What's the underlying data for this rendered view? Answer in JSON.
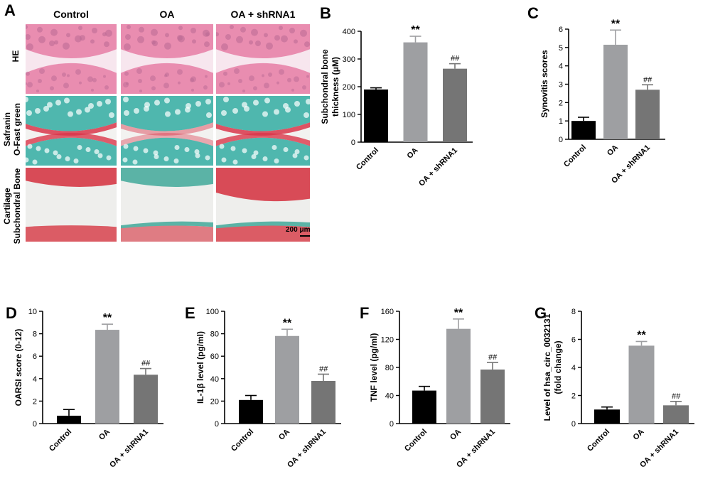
{
  "panel_a": {
    "letter": "A",
    "columns": [
      "Control",
      "OA",
      "OA + shRNA1"
    ],
    "rows": [
      {
        "label_lines": [
          "HE"
        ],
        "stain": "he"
      },
      {
        "label_lines": [
          "Safranin",
          "O-Fast green"
        ],
        "stain": "safranin"
      },
      {
        "label_lines": [
          "Cartilage",
          "Subchondral Bone"
        ],
        "stain": "cartilage"
      }
    ],
    "scale_bar": "200 μm",
    "colors": {
      "he_bg": "#f4c7d6",
      "he_tissue": "#e98db0",
      "saf_bg": "#f2f2f0",
      "saf_green": "#4fb7ae",
      "saf_red": "#d9364a",
      "cart_bg": "#eeeeec",
      "cart_red": "#d84b57",
      "cart_green": "#5bb3a6"
    }
  },
  "chart_data": [
    {
      "letter": "B",
      "type": "bar",
      "categories": [
        "Control",
        "OA",
        "OA + shRNA1"
      ],
      "values": [
        190,
        360,
        265
      ],
      "errors": [
        6,
        22,
        18
      ],
      "annotations": [
        "",
        "**",
        "##"
      ],
      "ylabel_lines": [
        "Subchondral bone",
        "thickness (μM)"
      ],
      "ylim": [
        0,
        400
      ],
      "yticks": [
        0,
        100,
        200,
        300,
        400
      ],
      "colors": [
        "#000000",
        "#9e9fa2",
        "#757575"
      ]
    },
    {
      "letter": "C",
      "type": "bar",
      "categories": [
        "Control",
        "OA",
        "OA + shRNA1"
      ],
      "values": [
        1.0,
        5.15,
        2.7
      ],
      "errors": [
        0.2,
        0.8,
        0.27
      ],
      "annotations": [
        "",
        "**",
        "##"
      ],
      "ylabel_lines": [
        "Synovitis scores"
      ],
      "ylim": [
        0,
        6
      ],
      "yticks": [
        0,
        1,
        2,
        3,
        4,
        5,
        6
      ],
      "colors": [
        "#000000",
        "#9e9fa2",
        "#757575"
      ]
    },
    {
      "letter": "D",
      "type": "bar",
      "categories": [
        "Control",
        "OA",
        "OA + shRNA1"
      ],
      "values": [
        0.7,
        8.35,
        4.35
      ],
      "errors": [
        0.55,
        0.5,
        0.55
      ],
      "annotations": [
        "",
        "**",
        "##"
      ],
      "ylabel_lines": [
        "OARSI score (0-12)"
      ],
      "ylim": [
        0,
        10
      ],
      "yticks": [
        0,
        2,
        4,
        6,
        8,
        10
      ],
      "colors": [
        "#000000",
        "#9e9fa2",
        "#757575"
      ]
    },
    {
      "letter": "E",
      "type": "bar",
      "categories": [
        "Control",
        "OA",
        "OA + shRNA1"
      ],
      "values": [
        21,
        78,
        38
      ],
      "errors": [
        4,
        6,
        6
      ],
      "annotations": [
        "",
        "**",
        "##"
      ],
      "ylabel_lines": [
        "IL-1β level (pg/ml)"
      ],
      "ylim": [
        0,
        100
      ],
      "yticks": [
        0,
        20,
        40,
        60,
        80,
        100
      ],
      "colors": [
        "#000000",
        "#9e9fa2",
        "#757575"
      ]
    },
    {
      "letter": "F",
      "type": "bar",
      "categories": [
        "Control",
        "OA",
        "OA + shRNA1"
      ],
      "values": [
        47,
        135,
        77
      ],
      "errors": [
        6,
        14,
        10
      ],
      "annotations": [
        "",
        "**",
        "##"
      ],
      "ylabel_lines": [
        "TNF level (pg/ml)"
      ],
      "ylim": [
        0,
        160
      ],
      "yticks": [
        0,
        40,
        80,
        120,
        160
      ],
      "colors": [
        "#000000",
        "#9e9fa2",
        "#757575"
      ]
    },
    {
      "letter": "G",
      "type": "bar",
      "categories": [
        "Control",
        "OA",
        "OA + shRNA1"
      ],
      "values": [
        1.0,
        5.55,
        1.3
      ],
      "errors": [
        0.18,
        0.3,
        0.28
      ],
      "annotations": [
        "",
        "**",
        "##"
      ],
      "ylabel_lines": [
        "Level of hsa_circ_0032131",
        "(fold change)"
      ],
      "ylim": [
        0,
        8
      ],
      "yticks": [
        0,
        2,
        4,
        6,
        8
      ],
      "colors": [
        "#000000",
        "#9e9fa2",
        "#757575"
      ]
    }
  ]
}
